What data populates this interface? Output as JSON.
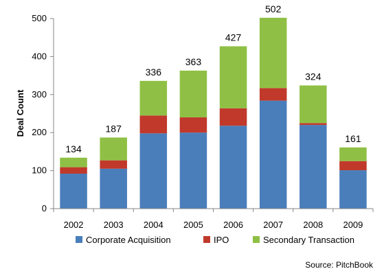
{
  "chart_data": {
    "type": "bar",
    "stacked": true,
    "ylabel": "Deal Count",
    "xlabel": "",
    "ylim": [
      0,
      500
    ],
    "yticks": [
      0,
      100,
      200,
      300,
      400,
      500
    ],
    "categories": [
      "2002",
      "2003",
      "2004",
      "2005",
      "2006",
      "2007",
      "2008",
      "2009"
    ],
    "series": [
      {
        "name": "Corporate Acquisition",
        "color": "#4a7ebb",
        "values": [
          92,
          105,
          198,
          200,
          218,
          284,
          220,
          101
        ]
      },
      {
        "name": "IPO",
        "color": "#c0392b",
        "values": [
          17,
          22,
          47,
          40,
          46,
          33,
          5,
          24
        ]
      },
      {
        "name": "Secondary Transaction",
        "color": "#8fc045",
        "values": [
          25,
          60,
          91,
          123,
          163,
          185,
          99,
          36
        ]
      }
    ],
    "totals": [
      134,
      187,
      336,
      363,
      427,
      502,
      324,
      161
    ],
    "grid": false,
    "legend_position": "bottom"
  },
  "source_note": "Source: PitchBook"
}
